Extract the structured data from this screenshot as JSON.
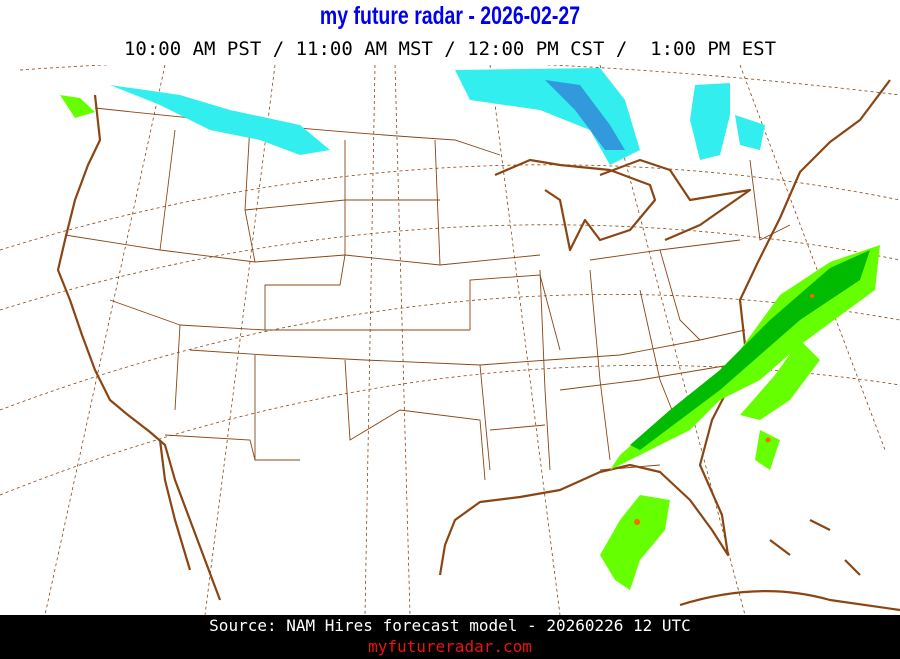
{
  "header": {
    "title": "my future radar - 2026-02-27",
    "times": "10:00 AM PST / 11:00 AM MST / 12:00 PM CST /  1:00 PM EST"
  },
  "map": {
    "region": "Continental United States",
    "layers": [
      "state-borders",
      "coastlines",
      "lat-lon-graticule",
      "forecast-precipitation"
    ],
    "colors": {
      "borders": "#8b4513",
      "coastline": "#8b4513",
      "graticule": "#8b4513",
      "snow": "#33eeee",
      "snow_heavy": "#3399dd",
      "rain_light": "#66ff00",
      "rain_moderate": "#00bb00",
      "rain_heavy": "#ff6600"
    }
  },
  "footer": {
    "source": "Source: NAM Hires forecast model - 20260226 12 UTC",
    "site": "myfutureradar.com"
  }
}
